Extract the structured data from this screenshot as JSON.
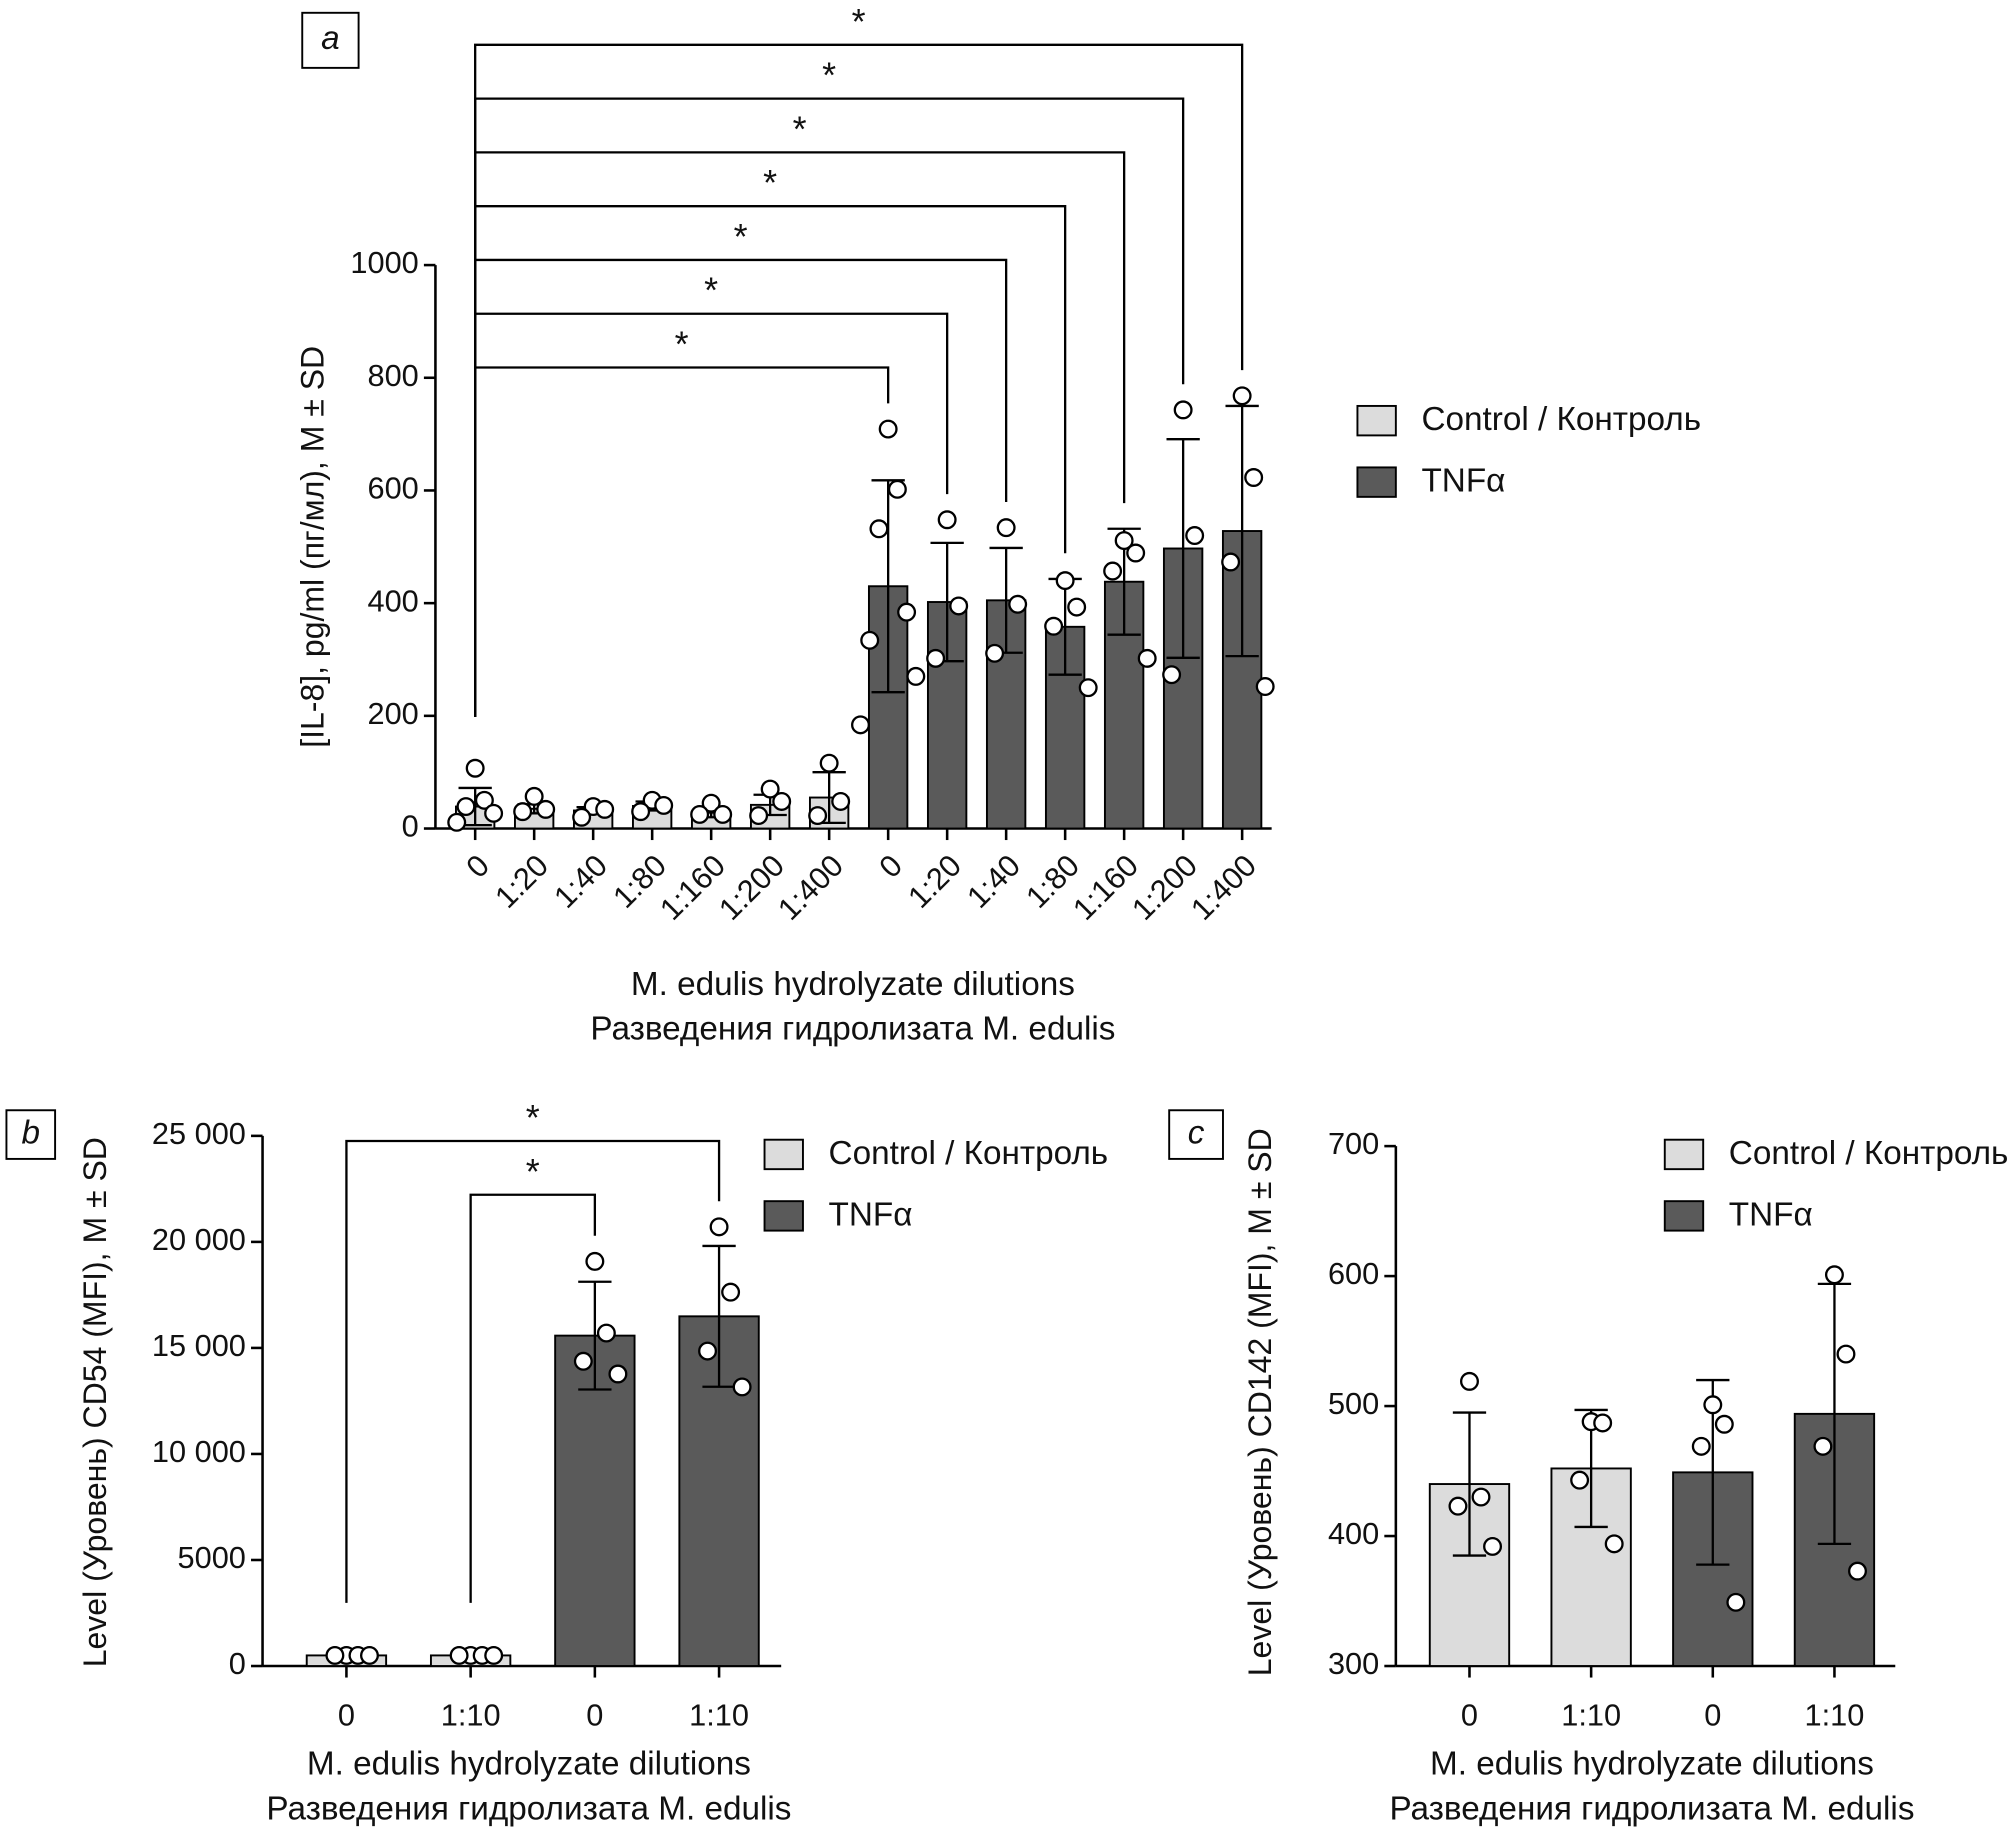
{
  "chart_data": [
    {
      "type": "bar",
      "panel_label": "a",
      "ylabel": "[IL-8], pg/ml (пг/мл), M ± SD",
      "xlabel": [
        "M. edulis hydrolyzate dilutions",
        "Разведения гидролизата M. edulis"
      ],
      "categories": [
        "0",
        "1:20",
        "1:40",
        "1:80",
        "1:160",
        "1:200",
        "1:400",
        "0",
        "1:20",
        "1:40",
        "1:80",
        "1:160",
        "1:200",
        "1:400"
      ],
      "xtick_rotation": -45,
      "series": [
        {
          "name": "Control / Контроль",
          "color": "#dcdcdc",
          "values": [
            39,
            35,
            32,
            40,
            28,
            42,
            55,
            null,
            null,
            null,
            null,
            null,
            null,
            null
          ],
          "errors": [
            33,
            8,
            6,
            8,
            8,
            18,
            45,
            null,
            null,
            null,
            null,
            null,
            null,
            null
          ],
          "points": [
            [
              107,
              50,
              39,
              27,
              11
            ],
            [
              57,
              34,
              30
            ],
            [
              39,
              34,
              20
            ],
            [
              50,
              41,
              30
            ],
            [
              45,
              25,
              25
            ],
            [
              70,
              48,
              23
            ],
            [
              116,
              48,
              23
            ],
            null,
            null,
            null,
            null,
            null,
            null,
            null
          ]
        },
        {
          "name": "TNFα",
          "color": "#5a5a5a",
          "values": [
            null,
            null,
            null,
            null,
            null,
            null,
            null,
            430,
            402,
            405,
            358,
            438,
            497,
            528
          ],
          "errors": [
            null,
            null,
            null,
            null,
            null,
            null,
            null,
            188,
            105,
            93,
            85,
            94,
            194,
            222
          ],
          "points": [
            null,
            null,
            null,
            null,
            null,
            null,
            null,
            [
              709,
              602,
              532,
              384,
              334,
              270,
              184
            ],
            [
              548,
              395,
              302
            ],
            [
              534,
              398,
              311
            ],
            [
              440,
              393,
              359,
              250
            ],
            [
              511,
              489,
              457,
              302
            ],
            [
              743,
              520,
              273
            ],
            [
              768,
              623,
              473,
              252
            ]
          ]
        }
      ],
      "ylim": [
        0,
        1000
      ],
      "yticks": [
        0,
        200,
        400,
        600,
        800,
        1000
      ],
      "significance": [
        {
          "from": 0,
          "to": 7,
          "label": "*"
        },
        {
          "from": 0,
          "to": 8,
          "label": "*"
        },
        {
          "from": 0,
          "to": 9,
          "label": "*"
        },
        {
          "from": 0,
          "to": 10,
          "label": "*"
        },
        {
          "from": 0,
          "to": 11,
          "label": "*"
        },
        {
          "from": 0,
          "to": 12,
          "label": "*"
        },
        {
          "from": 0,
          "to": 13,
          "label": "*"
        }
      ]
    },
    {
      "type": "bar",
      "panel_label": "b",
      "ylabel": "Level (Уровень) CD54 (MFI), M ± SD",
      "xlabel": [
        "M. edulis hydrolyzate dilutions",
        "Разведения гидролизата M. edulis"
      ],
      "categories": [
        "0",
        "1:10",
        "0",
        "1:10"
      ],
      "series": [
        {
          "name": "Control / Контроль",
          "color": "#dcdcdc",
          "values": [
            500,
            500,
            null,
            null
          ],
          "errors": [
            60,
            60,
            null,
            null
          ],
          "points": [
            [
              500,
              500,
              500,
              500
            ],
            [
              500,
              500,
              500,
              500
            ],
            null,
            null
          ]
        },
        {
          "name": "TNFα",
          "color": "#5a5a5a",
          "values": [
            null,
            null,
            15580,
            16490
          ],
          "errors": [
            null,
            null,
            2540,
            3320
          ],
          "points": [
            null,
            null,
            [
              19080,
              15700,
              14370,
              13770
            ],
            [
              20710,
              17630,
              14850,
              13160
            ]
          ]
        }
      ],
      "ylim": [
        0,
        25000
      ],
      "yticks": [
        0,
        5000,
        {
          "value": 10000,
          "label": "10 000"
        },
        {
          "value": 15000,
          "label": "15 000"
        },
        {
          "value": 20000,
          "label": "20 000"
        },
        {
          "value": 25000,
          "label": "25 000"
        }
      ],
      "significance": [
        {
          "from": 1,
          "to": 2,
          "label": "*"
        },
        {
          "from": 0,
          "to": 3,
          "label": "*"
        }
      ]
    },
    {
      "type": "bar",
      "panel_label": "c",
      "ylabel": "Level (Уровень) CD142 (MFI), M ± SD",
      "xlabel": [
        "M. edulis hydrolyzate dilutions",
        "Разведения гидролизата M. edulis"
      ],
      "categories": [
        "0",
        "1:10",
        "0",
        "1:10"
      ],
      "series": [
        {
          "name": "Control / Контроль",
          "color": "#dcdcdc",
          "values": [
            440,
            452,
            null,
            null
          ],
          "errors": [
            55,
            45,
            null,
            null
          ],
          "points": [
            [
              519,
              430,
              423,
              392
            ],
            [
              488,
              487,
              443,
              394
            ],
            null,
            null
          ]
        },
        {
          "name": "TNFα",
          "color": "#5a5a5a",
          "values": [
            null,
            null,
            449,
            494
          ],
          "errors": [
            null,
            null,
            71,
            100
          ],
          "points": [
            null,
            null,
            [
              501,
              486,
              469,
              349
            ],
            [
              601,
              540,
              469,
              373
            ]
          ]
        }
      ],
      "ylim": [
        300,
        700
      ],
      "yticks": [
        300,
        400,
        500,
        600,
        700
      ]
    }
  ]
}
